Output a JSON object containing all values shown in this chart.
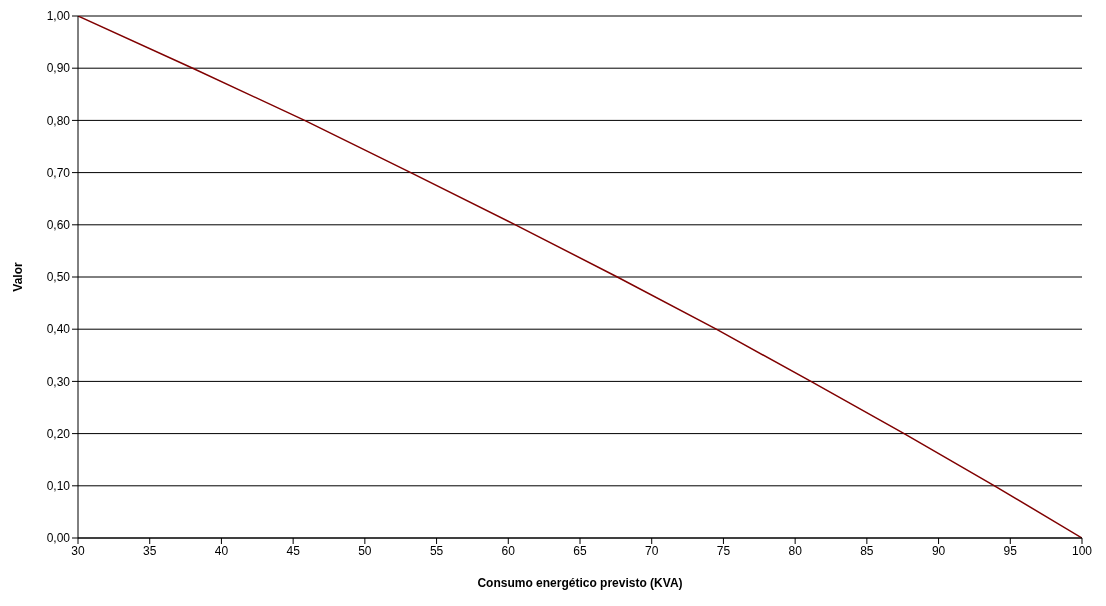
{
  "chart_data": {
    "type": "line",
    "xlabel": "Consumo energético previsto (KVA)",
    "ylabel": "Valor",
    "x": [
      30,
      38,
      45.8,
      53.2,
      60.5,
      67.6,
      74.5,
      81.1,
      87.6,
      93.9,
      100
    ],
    "series": [
      {
        "color": "#800000",
        "values": [
          1,
          0.9,
          0.8,
          0.7,
          0.6,
          0.5,
          0.4,
          0.3,
          0.2,
          0.1,
          0
        ]
      }
    ],
    "xlim": [
      30,
      100
    ],
    "xticks": [
      30,
      35,
      40,
      45,
      50,
      55,
      60,
      65,
      70,
      75,
      80,
      85,
      90,
      95,
      100
    ],
    "ylim": [
      0,
      1
    ],
    "yticks": [
      {
        "value": 0,
        "label": "0,00"
      },
      {
        "value": 0.1,
        "label": "0,10"
      },
      {
        "value": 0.2,
        "label": "0,20"
      },
      {
        "value": 0.3,
        "label": "0,30"
      },
      {
        "value": 0.4,
        "label": "0,40"
      },
      {
        "value": 0.5,
        "label": "0,50"
      },
      {
        "value": 0.6,
        "label": "0,60"
      },
      {
        "value": 0.7,
        "label": "0,70"
      },
      {
        "value": 0.8,
        "label": "0,80"
      },
      {
        "value": 0.9,
        "label": "0,90"
      },
      {
        "value": 1,
        "label": "1,00"
      }
    ],
    "grid": "y",
    "legend": false,
    "marker": "none",
    "line_style": "solid"
  }
}
